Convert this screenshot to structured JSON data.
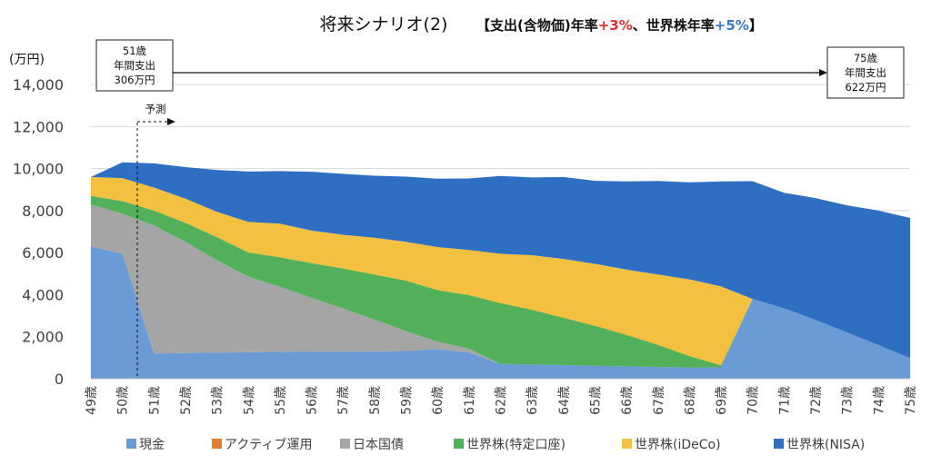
{
  "chart_data": {
    "type": "area",
    "stacked": true,
    "title": "将来シナリオ(2)",
    "subtitle": {
      "prefix": "【支出(含物価)年率",
      "inflation": "+3%",
      "middle": "、世界株年率",
      "growth": "+5%",
      "suffix": "】",
      "inflation_color": "#e03030",
      "growth_color": "#3a78c8"
    },
    "ylabel": "(万円)",
    "ylim": [
      0,
      15000
    ],
    "yticks": [
      0,
      2000,
      4000,
      6000,
      8000,
      10000,
      12000,
      14000
    ],
    "ytick_labels": [
      "0",
      "2,000",
      "4,000",
      "6,000",
      "8,000",
      "10,000",
      "12,000",
      "14,000"
    ],
    "grid": true,
    "legend_position": "bottom",
    "categories": [
      "49歳",
      "50歳",
      "51歳",
      "52歳",
      "53歳",
      "54歳",
      "55歳",
      "56歳",
      "57歳",
      "58歳",
      "59歳",
      "60歳",
      "61歳",
      "62歳",
      "63歳",
      "64歳",
      "65歳",
      "66歳",
      "67歳",
      "68歳",
      "69歳",
      "70歳",
      "71歳",
      "72歳",
      "73歳",
      "74歳",
      "75歳"
    ],
    "series": [
      {
        "name": "現金",
        "color": "#6a9bd4",
        "values": [
          6300,
          5950,
          1200,
          1220,
          1240,
          1260,
          1280,
          1300,
          1300,
          1310,
          1320,
          1420,
          1250,
          700,
          680,
          650,
          620,
          590,
          560,
          530,
          540,
          3800,
          3350,
          2800,
          2200,
          1600,
          980
        ]
      },
      {
        "name": "アクティブ運用",
        "color": "#e67e32",
        "values": [
          0,
          0,
          0,
          0,
          0,
          0,
          0,
          0,
          0,
          0,
          0,
          0,
          0,
          0,
          0,
          0,
          0,
          0,
          0,
          0,
          0,
          0,
          0,
          0,
          0,
          0,
          0
        ]
      },
      {
        "name": "日本国債",
        "color": "#a5a5a5",
        "values": [
          2000,
          1900,
          6100,
          5300,
          4400,
          3600,
          3100,
          2550,
          2050,
          1500,
          950,
          350,
          180,
          0,
          0,
          0,
          0,
          0,
          0,
          0,
          0,
          0,
          0,
          0,
          0,
          0,
          0
        ]
      },
      {
        "name": "世界株(特定口座)",
        "color": "#52af5a",
        "values": [
          400,
          600,
          700,
          900,
          1100,
          1150,
          1400,
          1650,
          1900,
          2150,
          2400,
          2450,
          2550,
          2900,
          2600,
          2250,
          1900,
          1500,
          1050,
          550,
          100,
          0,
          0,
          0,
          0,
          0,
          0
        ]
      },
      {
        "name": "世界株(iDeCo)",
        "color": "#f4c040",
        "values": [
          900,
          1100,
          1100,
          1150,
          1200,
          1450,
          1600,
          1550,
          1600,
          1750,
          1850,
          2050,
          2150,
          2350,
          2600,
          2800,
          2950,
          3100,
          3350,
          3650,
          3750,
          0,
          0,
          0,
          0,
          0,
          0
        ]
      },
      {
        "name": "世界株(NISA)",
        "color": "#2f6fc2",
        "values": [
          0,
          750,
          1150,
          1500,
          2000,
          2400,
          2500,
          2800,
          2900,
          2950,
          3100,
          3250,
          3400,
          3700,
          3700,
          3900,
          3950,
          4200,
          4450,
          4620,
          5000,
          5600,
          5500,
          5800,
          6050,
          6400,
          6670
        ]
      }
    ],
    "annotations": {
      "start_box": {
        "lines": [
          "51歳",
          "年間支出",
          "306万円"
        ]
      },
      "end_box": {
        "lines": [
          "75歳",
          "年間支出",
          "622万円"
        ]
      },
      "forecast_label": "予測"
    }
  }
}
